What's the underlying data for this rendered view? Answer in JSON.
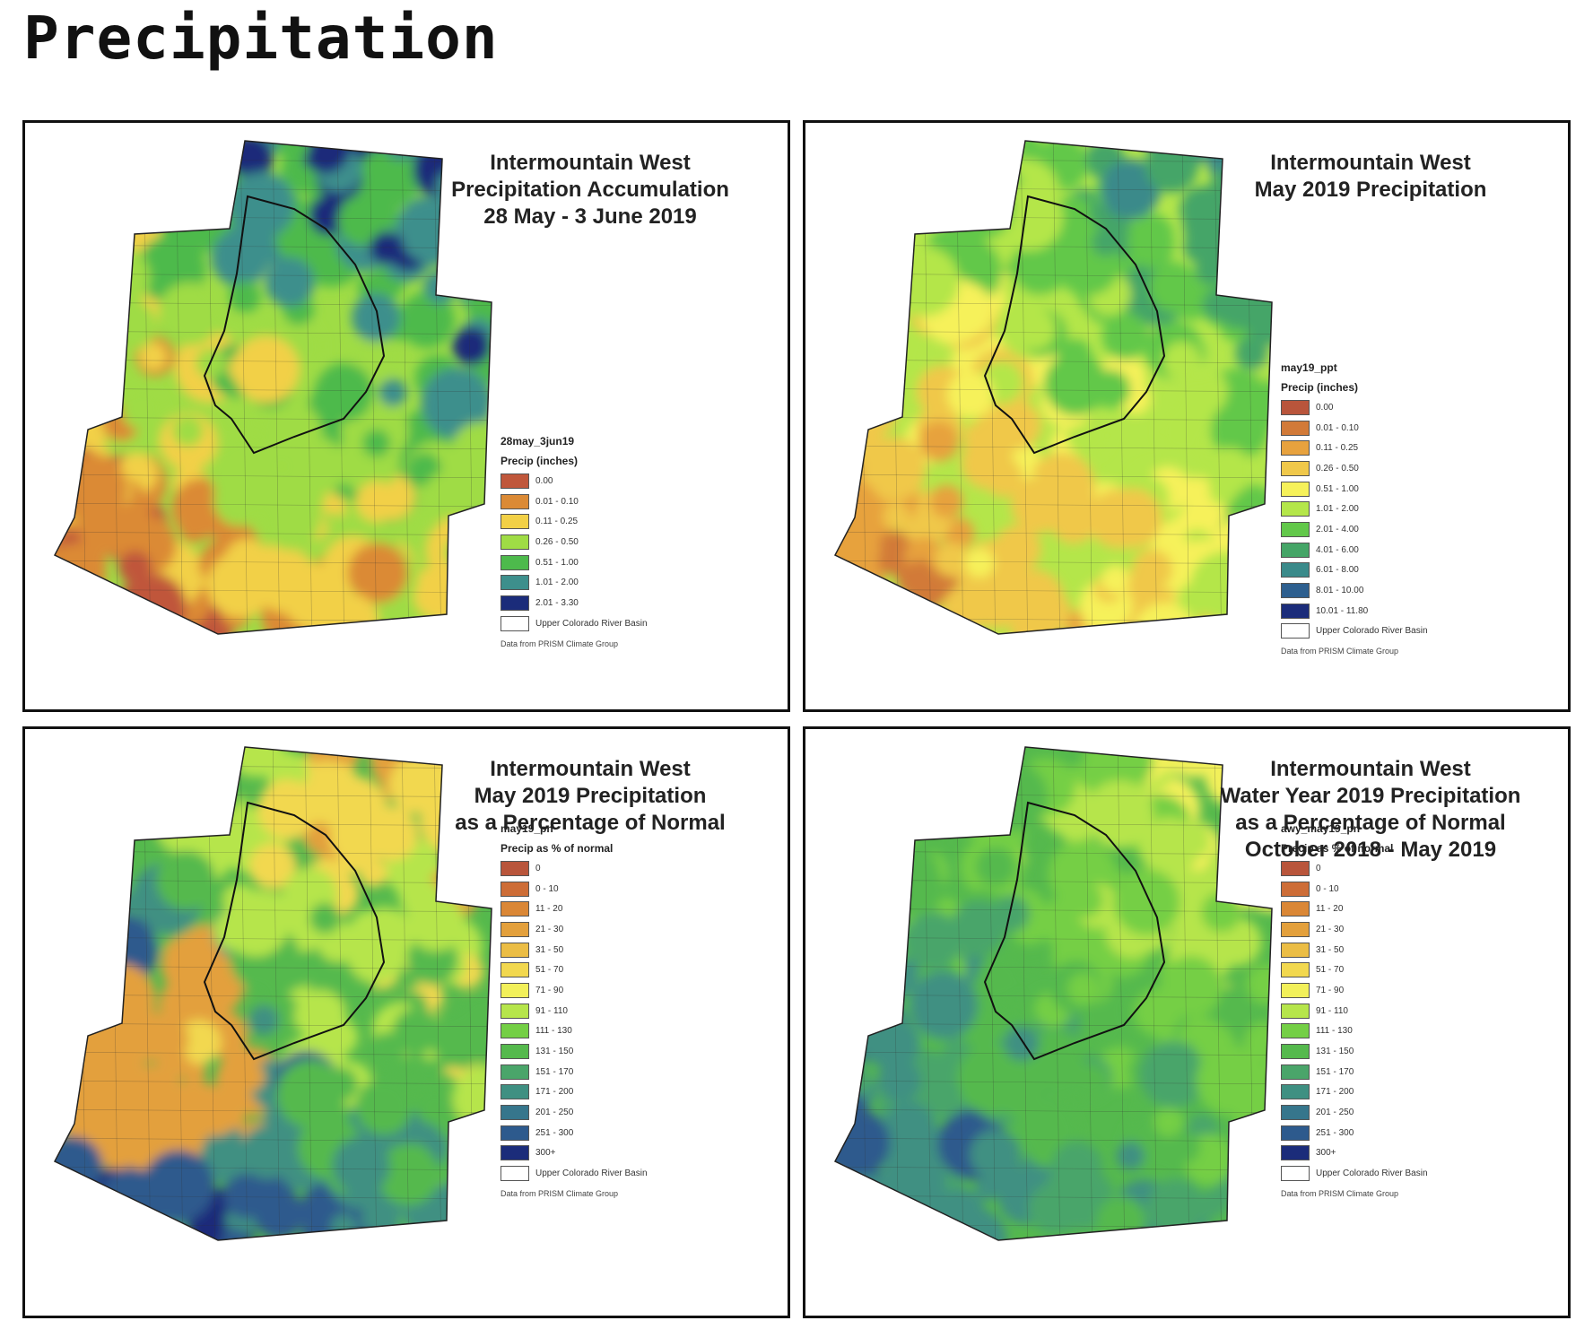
{
  "page": {
    "title": "Precipitation"
  },
  "panels": [
    {
      "title_lines": [
        "Intermountain West",
        "Precipitation Accumulation",
        "28 May - 3 June 2019"
      ],
      "legend": {
        "name": "28may_3jun19",
        "subtitle": "Precip (inches)",
        "items": [
          {
            "label": "0.00",
            "color": "#c0573b"
          },
          {
            "label": "0.01 - 0.10",
            "color": "#db8a35"
          },
          {
            "label": "0.11 - 0.25",
            "color": "#f2d046"
          },
          {
            "label": "0.26 - 0.50",
            "color": "#9fdc45"
          },
          {
            "label": "0.51 - 1.00",
            "color": "#4dba4c"
          },
          {
            "label": "1.01 - 2.00",
            "color": "#3d8f8c"
          },
          {
            "label": "2.01 - 3.30",
            "color": "#1b2c7a"
          },
          {
            "label": "Upper Colorado River Basin",
            "color": "#ffffff"
          }
        ],
        "credit": "Data from PRISM Climate Group"
      },
      "map_palette": [
        "#c0573b",
        "#db8a35",
        "#f2d046",
        "#9fdc45",
        "#4dba4c",
        "#3d8f8c",
        "#1b2c7a"
      ]
    },
    {
      "title_lines": [
        "Intermountain West",
        "May 2019 Precipitation"
      ],
      "legend": {
        "name": "may19_ppt",
        "subtitle": "Precip (inches)",
        "items": [
          {
            "label": "0.00",
            "color": "#b9553b"
          },
          {
            "label": "0.01 - 0.10",
            "color": "#d27a38"
          },
          {
            "label": "0.11 - 0.25",
            "color": "#e7a23e"
          },
          {
            "label": "0.26 - 0.50",
            "color": "#f0c84a"
          },
          {
            "label": "0.51 - 1.00",
            "color": "#f6f15a"
          },
          {
            "label": "1.01 - 2.00",
            "color": "#b4e64a"
          },
          {
            "label": "2.01 - 4.00",
            "color": "#62c84a"
          },
          {
            "label": "4.01 - 6.00",
            "color": "#45a567"
          },
          {
            "label": "6.01 - 8.00",
            "color": "#3a8a8a"
          },
          {
            "label": "8.01 - 10.00",
            "color": "#2d5f8f"
          },
          {
            "label": "10.01 - 11.80",
            "color": "#1b2c7a"
          },
          {
            "label": "Upper Colorado River Basin",
            "color": "#ffffff"
          }
        ],
        "credit": "Data from PRISM Climate Group"
      },
      "map_palette": [
        "#d27a38",
        "#e7a23e",
        "#f0c84a",
        "#f6f15a",
        "#b4e64a",
        "#62c84a",
        "#45a567",
        "#3a8a8a"
      ]
    },
    {
      "title_lines": [
        "Intermountain West",
        "May 2019 Precipitation",
        "as a Percentage of Normal"
      ],
      "legend": {
        "name": "may19_pn",
        "subtitle": "Precip as % of normal",
        "items": [
          {
            "label": "0",
            "color": "#b9553b"
          },
          {
            "label": "0 - 10",
            "color": "#cd6d37"
          },
          {
            "label": "11 - 20",
            "color": "#da8736"
          },
          {
            "label": "21 - 30",
            "color": "#e3a03c"
          },
          {
            "label": "31 - 50",
            "color": "#ebbd45"
          },
          {
            "label": "51 - 70",
            "color": "#f2d84f"
          },
          {
            "label": "71 - 90",
            "color": "#f2f05a"
          },
          {
            "label": "91 - 110",
            "color": "#b6e54b"
          },
          {
            "label": "111 - 130",
            "color": "#74cf45"
          },
          {
            "label": "131 - 150",
            "color": "#55b94d"
          },
          {
            "label": "151 - 170",
            "color": "#4aa56a"
          },
          {
            "label": "171 - 200",
            "color": "#3f9082"
          },
          {
            "label": "201 - 250",
            "color": "#36768c"
          },
          {
            "label": "251 - 300",
            "color": "#2d5a8d"
          },
          {
            "label": "300+",
            "color": "#1b2c7a"
          },
          {
            "label": "Upper Colorado River Basin",
            "color": "#ffffff"
          }
        ],
        "credit": "Data from PRISM Climate Group"
      },
      "map_palette": [
        "#e3a03c",
        "#f2d84f",
        "#b6e54b",
        "#55b94d",
        "#3f9082",
        "#2d5a8d",
        "#1b2c7a"
      ]
    },
    {
      "title_lines": [
        "Intermountain West",
        "Water Year 2019 Precipitation",
        "as a Percentage of Normal",
        "October 2018 - May 2019"
      ],
      "legend": {
        "name": "awy_may19_pn",
        "subtitle": "Precip as % of normal",
        "items": [
          {
            "label": "0",
            "color": "#b9553b"
          },
          {
            "label": "0 - 10",
            "color": "#cd6d37"
          },
          {
            "label": "11 - 20",
            "color": "#da8736"
          },
          {
            "label": "21 - 30",
            "color": "#e3a03c"
          },
          {
            "label": "31 - 50",
            "color": "#ebbd45"
          },
          {
            "label": "51 - 70",
            "color": "#f2d84f"
          },
          {
            "label": "71 - 90",
            "color": "#f2f05a"
          },
          {
            "label": "91 - 110",
            "color": "#b6e54b"
          },
          {
            "label": "111 - 130",
            "color": "#74cf45"
          },
          {
            "label": "131 - 150",
            "color": "#55b94d"
          },
          {
            "label": "151 - 170",
            "color": "#4aa56a"
          },
          {
            "label": "171 - 200",
            "color": "#3f9082"
          },
          {
            "label": "201 - 250",
            "color": "#36768c"
          },
          {
            "label": "251 - 300",
            "color": "#2d5a8d"
          },
          {
            "label": "300+",
            "color": "#1b2c7a"
          },
          {
            "label": "Upper Colorado River Basin",
            "color": "#ffffff"
          }
        ],
        "credit": "Data from PRISM Climate Group"
      },
      "map_palette": [
        "#f2f05a",
        "#b6e54b",
        "#74cf45",
        "#55b94d",
        "#4aa56a",
        "#3f9082",
        "#2d5a8d"
      ]
    }
  ]
}
